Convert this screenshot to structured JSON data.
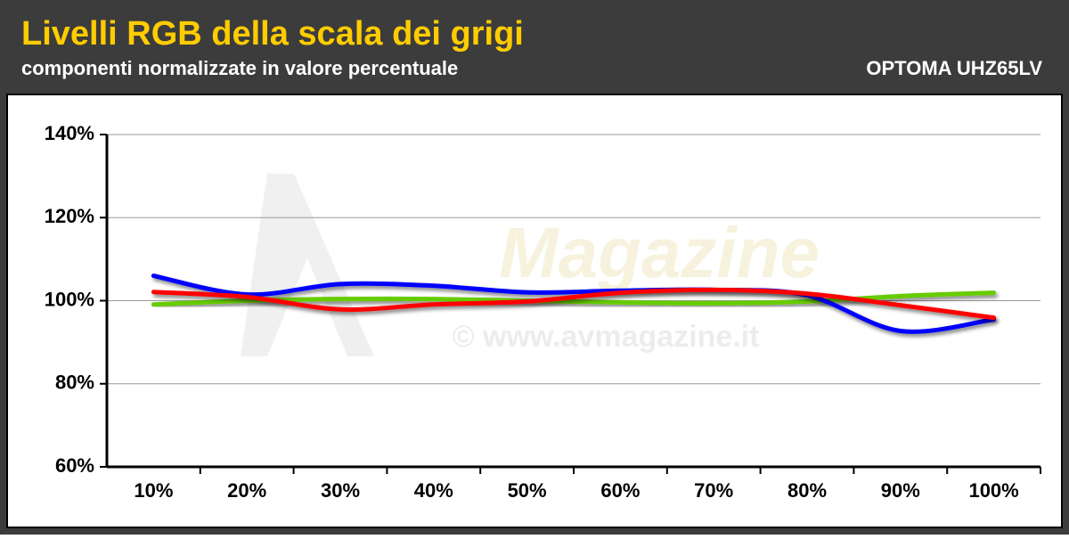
{
  "chart_data": {
    "type": "line",
    "title": "Livelli RGB della scala dei grigi",
    "subtitle": "componenti normalizzate in valore percentuale",
    "device": "OPTOMA UHZ65LV",
    "watermark_logo": "Magazine",
    "watermark_url": "© www.avmagazine.it",
    "categories": [
      "10%",
      "20%",
      "30%",
      "40%",
      "50%",
      "60%",
      "70%",
      "80%",
      "90%",
      "100%"
    ],
    "series": [
      {
        "color": "#66cc00",
        "values": [
          99.1,
          100.0,
          100.4,
          100.4,
          100.0,
          99.6,
          99.4,
          99.8,
          101.1,
          101.9
        ]
      },
      {
        "color": "#0000ff",
        "values": [
          106.0,
          101.5,
          104.0,
          103.6,
          102.0,
          102.4,
          102.6,
          101.3,
          92.7,
          95.5
        ]
      },
      {
        "color": "#ff0000",
        "values": [
          102.1,
          100.9,
          97.9,
          99.1,
          99.8,
          101.9,
          102.6,
          101.7,
          98.9,
          95.9
        ]
      }
    ],
    "ylim": [
      60,
      140
    ],
    "yticks": [
      {
        "value": 60,
        "label": "60%"
      },
      {
        "value": 80,
        "label": "80%"
      },
      {
        "value": 100,
        "label": "100%"
      },
      {
        "value": 120,
        "label": "120%"
      },
      {
        "value": 140,
        "label": "140%"
      }
    ],
    "grid": true
  }
}
